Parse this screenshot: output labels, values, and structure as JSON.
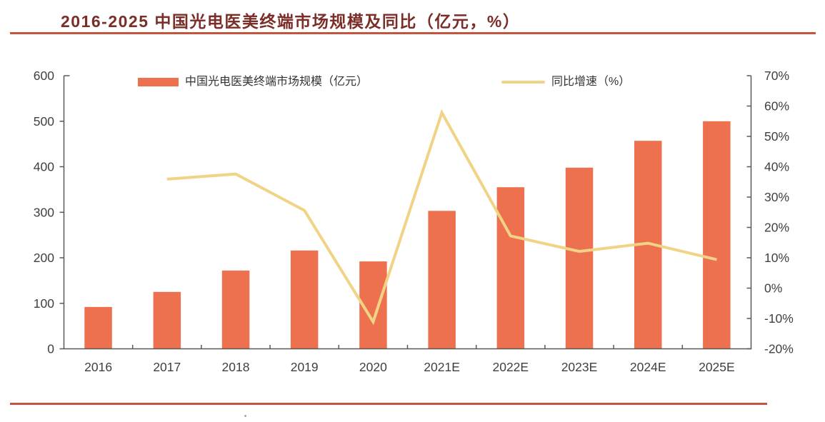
{
  "colors": {
    "title": "#7B2D28",
    "rule": "#C3553F",
    "bar": "#ED714E",
    "line": "#F0D385",
    "axis": "#595959",
    "text": "#404040"
  },
  "chart_data": {
    "type": "combo-bar-line",
    "title": "2016-2025 中国光电医美终端市场规模及同比（亿元，%）",
    "categories": [
      "2016",
      "2017",
      "2018",
      "2019",
      "2020",
      "2021E",
      "2022E",
      "2023E",
      "2024E",
      "2025E"
    ],
    "series": [
      {
        "name": "中国光电医美终端市场规模（亿元）",
        "type": "bar",
        "axis": "left",
        "color": "#ED714E",
        "values": [
          92,
          125,
          172,
          216,
          192,
          303,
          355,
          398,
          457,
          500
        ]
      },
      {
        "name": "同比增速（%）",
        "type": "line",
        "axis": "right",
        "color": "#F0D385",
        "values": [
          null,
          35.9,
          37.6,
          25.6,
          -11.1,
          57.8,
          17.2,
          12.1,
          14.8,
          9.4
        ]
      }
    ],
    "left_axis": {
      "min": 0,
      "max": 600,
      "step": 100,
      "ticks_top_down": [
        "600",
        "500",
        "400",
        "300",
        "200",
        "100",
        "0"
      ]
    },
    "right_axis": {
      "min": -20,
      "max": 70,
      "step": 10,
      "ticks_top_down": [
        "70%",
        "60%",
        "50%",
        "40%",
        "30%",
        "20%",
        "10%",
        "0%",
        "-10%",
        "-20%"
      ]
    },
    "grid": false,
    "legend_position": "top"
  }
}
